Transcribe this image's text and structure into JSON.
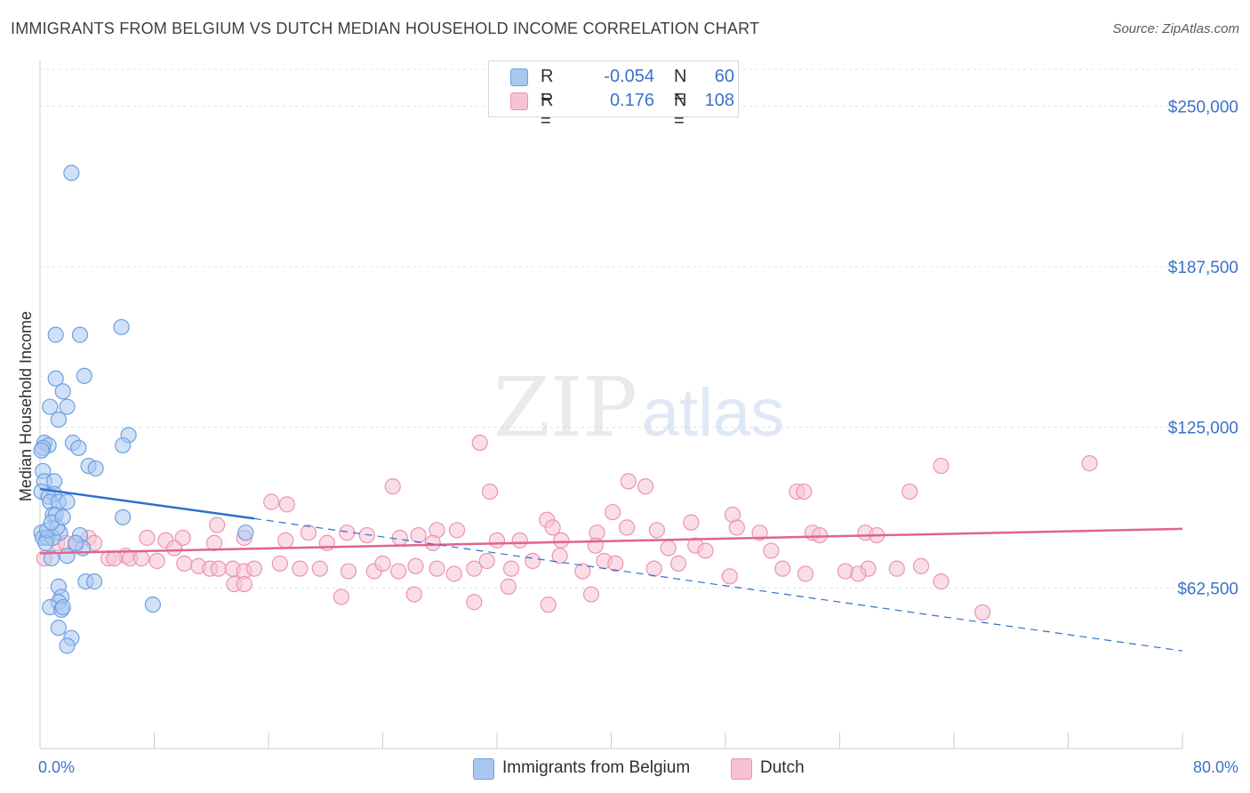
{
  "title": "IMMIGRANTS FROM BELGIUM VS DUTCH MEDIAN HOUSEHOLD INCOME CORRELATION CHART",
  "source": "Source: ZipAtlas.com",
  "watermark": {
    "zip": "ZIP",
    "atlas": "atlas"
  },
  "colors": {
    "belgium_fill": "#a9c8f0",
    "belgium_stroke": "#6d9fe0",
    "belgium_line": "#2f6fd0",
    "dutch_fill": "#f6c2d3",
    "dutch_stroke": "#ec93b2",
    "dutch_line": "#e0648f",
    "axis_label": "#3b72c9",
    "grid": "#dde1e6"
  },
  "legend": {
    "rows": [
      {
        "r_label": "R =",
        "r_value": "-0.054",
        "n_label": "N =",
        "n_value": "60"
      },
      {
        "r_label": "R =",
        "r_value": "0.176",
        "n_label": "N =",
        "n_value": "108"
      }
    ]
  },
  "bottom_legend": {
    "belgium": "Immigrants from Belgium",
    "dutch": "Dutch"
  },
  "chart_data": {
    "type": "scatter",
    "xlabel": "",
    "ylabel": "Median Household Income",
    "xlim": [
      0,
      80
    ],
    "ylim": [
      0,
      265000
    ],
    "x_tick_labels": {
      "min": "0.0%",
      "max": "80.0%"
    },
    "y_ticks": [
      62500,
      125000,
      187500,
      250000
    ],
    "y_tick_labels": [
      "$62,500",
      "$125,000",
      "$187,500",
      "$250,000"
    ],
    "series": [
      {
        "name": "Immigrants from Belgium",
        "r": -0.054,
        "n": 60,
        "trend": {
          "x_start": 0,
          "y_start": 101000,
          "x_solid_end": 15,
          "y_solid_end": 89500,
          "x_end": 80,
          "y_end": 38000
        },
        "points": [
          [
            2.2,
            224000
          ],
          [
            5.7,
            164000
          ],
          [
            1.1,
            161000
          ],
          [
            2.8,
            161000
          ],
          [
            3.1,
            145000
          ],
          [
            1.1,
            144000
          ],
          [
            1.6,
            139000
          ],
          [
            0.7,
            133000
          ],
          [
            1.9,
            133000
          ],
          [
            1.3,
            128000
          ],
          [
            6.2,
            122000
          ],
          [
            0.3,
            119000
          ],
          [
            0.6,
            118000
          ],
          [
            2.3,
            119000
          ],
          [
            0.2,
            117000
          ],
          [
            2.7,
            117000
          ],
          [
            5.8,
            118000
          ],
          [
            0.1,
            116000
          ],
          [
            3.4,
            110000
          ],
          [
            3.9,
            109000
          ],
          [
            0.2,
            108000
          ],
          [
            0.3,
            104000
          ],
          [
            1.0,
            104000
          ],
          [
            0.1,
            100000
          ],
          [
            1.0,
            99000
          ],
          [
            0.6,
            98000
          ],
          [
            0.7,
            96000
          ],
          [
            1.3,
            96000
          ],
          [
            1.9,
            96000
          ],
          [
            0.9,
            91000
          ],
          [
            1.1,
            91000
          ],
          [
            5.8,
            90000
          ],
          [
            0.1,
            84000
          ],
          [
            1.4,
            84000
          ],
          [
            14.4,
            84000
          ],
          [
            0.2,
            82000
          ],
          [
            0.5,
            82000
          ],
          [
            0.9,
            82000
          ],
          [
            2.8,
            83000
          ],
          [
            0.4,
            80000
          ],
          [
            3.0,
            78000
          ],
          [
            1.9,
            75000
          ],
          [
            0.8,
            74000
          ],
          [
            3.2,
            65000
          ],
          [
            3.8,
            65000
          ],
          [
            1.3,
            63000
          ],
          [
            1.5,
            59000
          ],
          [
            1.3,
            57000
          ],
          [
            7.9,
            56000
          ],
          [
            0.7,
            55000
          ],
          [
            1.5,
            54000
          ],
          [
            1.6,
            55000
          ],
          [
            1.3,
            47000
          ],
          [
            2.2,
            43000
          ],
          [
            1.9,
            40000
          ],
          [
            0.5,
            85000
          ],
          [
            1.2,
            86000
          ],
          [
            2.5,
            80000
          ],
          [
            0.8,
            88000
          ],
          [
            1.6,
            90000
          ]
        ]
      },
      {
        "name": "Dutch",
        "r": 0.176,
        "n": 108,
        "trend": {
          "x_start": 0,
          "y_start": 76000,
          "x_end": 80,
          "y_end": 85500
        },
        "points": [
          [
            30.8,
            119000
          ],
          [
            73.5,
            111000
          ],
          [
            63.1,
            110000
          ],
          [
            41.2,
            104000
          ],
          [
            24.7,
            102000
          ],
          [
            42.4,
            102000
          ],
          [
            31.5,
            100000
          ],
          [
            53.0,
            100000
          ],
          [
            53.5,
            100000
          ],
          [
            60.9,
            100000
          ],
          [
            16.2,
            96000
          ],
          [
            17.3,
            95000
          ],
          [
            40.1,
            92000
          ],
          [
            48.5,
            91000
          ],
          [
            12.4,
            87000
          ],
          [
            35.5,
            89000
          ],
          [
            35.9,
            86000
          ],
          [
            41.1,
            86000
          ],
          [
            45.6,
            88000
          ],
          [
            43.2,
            85000
          ],
          [
            39.0,
            84000
          ],
          [
            18.8,
            84000
          ],
          [
            21.5,
            84000
          ],
          [
            27.8,
            85000
          ],
          [
            29.2,
            85000
          ],
          [
            48.8,
            86000
          ],
          [
            50.4,
            84000
          ],
          [
            22.9,
            83000
          ],
          [
            25.2,
            82000
          ],
          [
            26.5,
            83000
          ],
          [
            1.2,
            80000
          ],
          [
            1.8,
            80000
          ],
          [
            2.5,
            79000
          ],
          [
            3.4,
            82000
          ],
          [
            3.8,
            80000
          ],
          [
            7.5,
            82000
          ],
          [
            8.8,
            81000
          ],
          [
            10.0,
            82000
          ],
          [
            12.2,
            80000
          ],
          [
            14.3,
            82000
          ],
          [
            17.2,
            81000
          ],
          [
            20.1,
            80000
          ],
          [
            27.5,
            80000
          ],
          [
            32.0,
            81000
          ],
          [
            33.6,
            81000
          ],
          [
            36.5,
            81000
          ],
          [
            38.9,
            79000
          ],
          [
            44.0,
            78000
          ],
          [
            45.9,
            79000
          ],
          [
            46.6,
            77000
          ],
          [
            54.1,
            84000
          ],
          [
            51.2,
            77000
          ],
          [
            57.8,
            84000
          ],
          [
            58.6,
            83000
          ],
          [
            54.6,
            83000
          ],
          [
            9.4,
            78000
          ],
          [
            6.0,
            75000
          ],
          [
            4.8,
            74000
          ],
          [
            5.2,
            74000
          ],
          [
            6.3,
            74000
          ],
          [
            7.1,
            74000
          ],
          [
            8.2,
            73000
          ],
          [
            10.1,
            72000
          ],
          [
            11.1,
            71000
          ],
          [
            11.9,
            70000
          ],
          [
            12.5,
            70000
          ],
          [
            13.5,
            70000
          ],
          [
            14.3,
            69000
          ],
          [
            15.0,
            70000
          ],
          [
            16.8,
            72000
          ],
          [
            18.2,
            70000
          ],
          [
            19.6,
            70000
          ],
          [
            21.6,
            69000
          ],
          [
            23.4,
            69000
          ],
          [
            24.0,
            72000
          ],
          [
            25.1,
            69000
          ],
          [
            26.3,
            71000
          ],
          [
            27.8,
            70000
          ],
          [
            29.0,
            68000
          ],
          [
            30.4,
            70000
          ],
          [
            31.3,
            73000
          ],
          [
            33.0,
            70000
          ],
          [
            34.5,
            73000
          ],
          [
            36.4,
            75000
          ],
          [
            38.0,
            69000
          ],
          [
            39.5,
            73000
          ],
          [
            40.3,
            72000
          ],
          [
            43.0,
            70000
          ],
          [
            44.7,
            72000
          ],
          [
            52.0,
            70000
          ],
          [
            56.4,
            69000
          ],
          [
            58.0,
            70000
          ],
          [
            60.0,
            70000
          ],
          [
            61.7,
            71000
          ],
          [
            13.6,
            64000
          ],
          [
            14.3,
            64000
          ],
          [
            21.1,
            59000
          ],
          [
            26.2,
            60000
          ],
          [
            30.4,
            57000
          ],
          [
            32.8,
            63000
          ],
          [
            35.6,
            56000
          ],
          [
            38.6,
            60000
          ],
          [
            48.3,
            67000
          ],
          [
            53.6,
            68000
          ],
          [
            57.3,
            68000
          ],
          [
            63.1,
            65000
          ],
          [
            66.0,
            53000
          ],
          [
            0.3,
            74000
          ]
        ]
      }
    ]
  }
}
